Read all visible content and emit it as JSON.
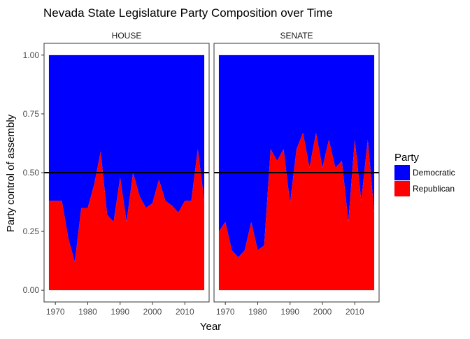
{
  "chart_data": {
    "type": "area",
    "title": "Nevada State Legislature Party Composition over Time",
    "xlabel": "Year",
    "ylabel": "Party control of assembly",
    "xlim": [
      1966.5,
      2017.5
    ],
    "ylim": [
      -0.05,
      1.05
    ],
    "xticks": [
      1970,
      1980,
      1990,
      2000,
      2010
    ],
    "yticks": [
      0.0,
      0.25,
      0.5,
      0.75,
      1.0
    ],
    "ytick_labels": [
      "0.00",
      "0.25",
      "0.50",
      "0.75",
      "1.00"
    ],
    "reference_line": 0.5,
    "grid": false,
    "legend": {
      "title": "Party",
      "position": "right",
      "entries": [
        {
          "name": "Democratic",
          "color": "#0000FF"
        },
        {
          "name": "Republican",
          "color": "#FF0000"
        }
      ]
    },
    "panels": [
      {
        "label": "HOUSE",
        "x": [
          1968,
          1970,
          1972,
          1974,
          1976,
          1978,
          1980,
          1982,
          1984,
          1986,
          1988,
          1990,
          1992,
          1994,
          1996,
          1998,
          2000,
          2002,
          2004,
          2006,
          2008,
          2010,
          2012,
          2014,
          2016
        ],
        "series": [
          {
            "name": "Republican",
            "values": [
              0.38,
              0.38,
              0.38,
              0.22,
              0.12,
              0.35,
              0.35,
              0.45,
              0.59,
              0.32,
              0.29,
              0.48,
              0.29,
              0.5,
              0.4,
              0.35,
              0.37,
              0.47,
              0.38,
              0.36,
              0.33,
              0.38,
              0.38,
              0.6,
              0.38
            ]
          },
          {
            "name": "Democratic",
            "values": [
              0.62,
              0.62,
              0.62,
              0.78,
              0.88,
              0.65,
              0.65,
              0.55,
              0.41,
              0.68,
              0.71,
              0.52,
              0.71,
              0.5,
              0.6,
              0.65,
              0.63,
              0.53,
              0.62,
              0.64,
              0.67,
              0.62,
              0.62,
              0.4,
              0.62
            ]
          }
        ]
      },
      {
        "label": "SENATE",
        "x": [
          1968,
          1970,
          1972,
          1974,
          1976,
          1978,
          1980,
          1982,
          1984,
          1986,
          1988,
          1990,
          1992,
          1994,
          1996,
          1998,
          2000,
          2002,
          2004,
          2006,
          2008,
          2010,
          2012,
          2014,
          2016
        ],
        "series": [
          {
            "name": "Republican",
            "values": [
              0.25,
              0.29,
              0.17,
              0.14,
              0.17,
              0.29,
              0.17,
              0.19,
              0.6,
              0.55,
              0.6,
              0.37,
              0.6,
              0.67,
              0.52,
              0.67,
              0.52,
              0.64,
              0.52,
              0.55,
              0.29,
              0.64,
              0.38,
              0.64,
              0.33
            ]
          },
          {
            "name": "Democratic",
            "values": [
              0.75,
              0.71,
              0.83,
              0.86,
              0.83,
              0.71,
              0.83,
              0.81,
              0.4,
              0.45,
              0.4,
              0.63,
              0.4,
              0.33,
              0.48,
              0.33,
              0.48,
              0.36,
              0.48,
              0.45,
              0.71,
              0.36,
              0.62,
              0.36,
              0.67
            ]
          }
        ]
      }
    ]
  }
}
